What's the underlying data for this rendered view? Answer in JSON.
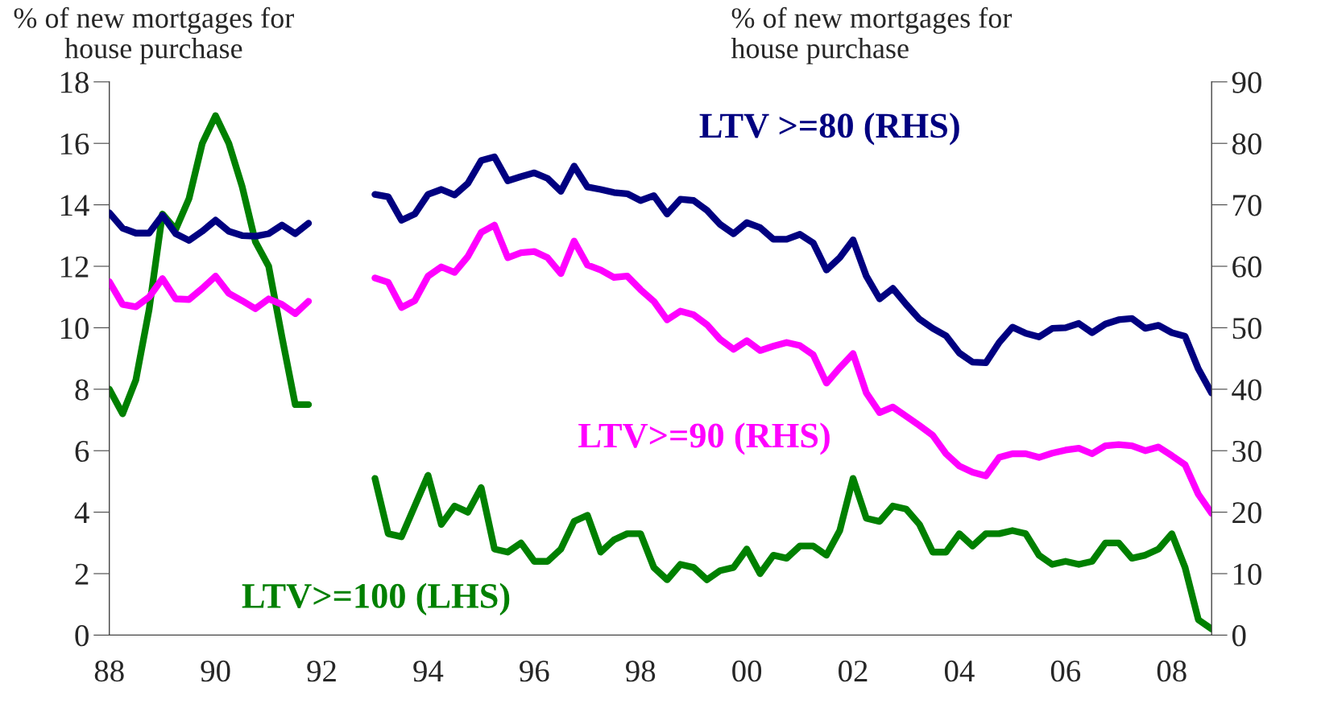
{
  "chart_data": {
    "type": "line",
    "ylabel": "% of new mortgages for house purchase",
    "y2label": "% of new mortgages for house purchase",
    "x": [
      1988.0,
      1988.25,
      1988.5,
      1988.75,
      1989.0,
      1989.25,
      1989.5,
      1989.75,
      1990.0,
      1990.25,
      1990.5,
      1990.75,
      1991.0,
      1991.25,
      1991.5,
      1991.75,
      1992.5,
      1993.0,
      1993.25,
      1993.5,
      1993.75,
      1994.0,
      1994.25,
      1994.5,
      1994.75,
      1995.0,
      1995.25,
      1995.5,
      1995.75,
      1996.0,
      1996.25,
      1996.5,
      1996.75,
      1997.0,
      1997.25,
      1997.5,
      1997.75,
      1998.0,
      1998.25,
      1998.5,
      1998.75,
      1999.0,
      1999.25,
      1999.5,
      1999.75,
      2000.0,
      2000.25,
      2000.5,
      2000.75,
      2001.0,
      2001.25,
      2001.5,
      2001.75,
      2002.0,
      2002.25,
      2002.5,
      2002.75,
      2003.0,
      2003.25,
      2003.5,
      2003.75,
      2004.0,
      2004.25,
      2004.5,
      2004.75,
      2005.0,
      2005.25,
      2005.5,
      2005.75,
      2006.0,
      2006.25,
      2006.5,
      2006.75,
      2007.0,
      2007.25,
      2007.5,
      2007.75,
      2008.0,
      2008.25,
      2008.5,
      2008.75
    ],
    "series": [
      {
        "name": "LTV >=80 (RHS)",
        "color": "#000080",
        "axis": "y2",
        "values": [
          68.7,
          66.2,
          65.4,
          65.4,
          68.3,
          65.3,
          64.2,
          65.7,
          67.5,
          65.7,
          65.0,
          64.9,
          65.3,
          66.7,
          65.3,
          67.0,
          null,
          71.7,
          71.3,
          67.5,
          68.5,
          71.7,
          72.5,
          71.6,
          73.5,
          77.2,
          77.8,
          73.9,
          74.6,
          75.2,
          74.3,
          72.2,
          76.3,
          72.9,
          72.5,
          72.0,
          71.8,
          70.7,
          71.5,
          68.5,
          70.9,
          70.7,
          69.1,
          66.8,
          65.3,
          67.1,
          66.3,
          64.4,
          64.4,
          65.2,
          63.8,
          59.4,
          61.4,
          64.3,
          58.4,
          54.7,
          56.4,
          53.8,
          51.4,
          49.9,
          48.7,
          45.9,
          44.4,
          44.3,
          47.6,
          50.1,
          49.1,
          48.5,
          49.9,
          50.0,
          50.7,
          49.2,
          50.6,
          51.3,
          51.5,
          49.9,
          50.4,
          49.2,
          48.6,
          43.3,
          39.4
        ]
      },
      {
        "name": "LTV>=90 (RHS)",
        "color": "#ff00ff",
        "axis": "y2",
        "values": [
          57.5,
          53.8,
          53.4,
          55.0,
          58.0,
          54.7,
          54.6,
          56.4,
          58.4,
          55.6,
          54.4,
          53.1,
          54.7,
          53.8,
          52.3,
          54.3,
          null,
          58.1,
          57.4,
          53.3,
          54.4,
          58.4,
          59.9,
          59.0,
          61.6,
          65.5,
          66.7,
          61.4,
          62.2,
          62.4,
          61.4,
          58.8,
          64.1,
          60.2,
          59.4,
          58.2,
          58.4,
          56.2,
          54.3,
          51.3,
          52.7,
          52.1,
          50.5,
          48.1,
          46.5,
          47.9,
          46.3,
          47.0,
          47.6,
          47.1,
          45.6,
          41.0,
          43.5,
          45.8,
          39.4,
          36.2,
          37.1,
          35.6,
          34.1,
          32.5,
          29.5,
          27.5,
          26.5,
          25.9,
          28.9,
          29.5,
          29.5,
          28.9,
          29.6,
          30.1,
          30.4,
          29.5,
          30.8,
          31.0,
          30.8,
          30.0,
          30.6,
          29.2,
          27.7,
          22.9,
          19.8
        ]
      },
      {
        "name": "LTV>=100 (LHS)",
        "color": "#008000",
        "axis": "y",
        "values": [
          8.0,
          7.2,
          8.3,
          10.6,
          13.7,
          13.2,
          14.2,
          16.0,
          16.9,
          16.0,
          14.6,
          12.8,
          12.0,
          9.7,
          7.5,
          7.5,
          null,
          5.1,
          3.3,
          3.2,
          4.2,
          5.2,
          3.6,
          4.2,
          4.0,
          4.8,
          2.8,
          2.7,
          3.0,
          2.4,
          2.4,
          2.8,
          3.7,
          3.9,
          2.7,
          3.1,
          3.3,
          3.3,
          2.2,
          1.8,
          2.3,
          2.2,
          1.8,
          2.1,
          2.2,
          2.8,
          2.0,
          2.6,
          2.5,
          2.9,
          2.9,
          2.6,
          3.4,
          5.1,
          3.8,
          3.7,
          4.2,
          4.1,
          3.6,
          2.7,
          2.7,
          3.3,
          2.9,
          3.3,
          3.3,
          3.4,
          3.3,
          2.6,
          2.3,
          2.4,
          2.3,
          2.4,
          3.0,
          3.0,
          2.5,
          2.6,
          2.8,
          3.3,
          2.2,
          0.5,
          0.2
        ]
      }
    ],
    "xlim": [
      1988,
      2008.75
    ],
    "xticks": [
      {
        "value": 1988,
        "label": "88"
      },
      {
        "value": 1990,
        "label": "90"
      },
      {
        "value": 1992,
        "label": "92"
      },
      {
        "value": 1994,
        "label": "94"
      },
      {
        "value": 1996,
        "label": "96"
      },
      {
        "value": 1998,
        "label": "98"
      },
      {
        "value": 2000,
        "label": "00"
      },
      {
        "value": 2002,
        "label": "02"
      },
      {
        "value": 2004,
        "label": "04"
      },
      {
        "value": 2006,
        "label": "06"
      },
      {
        "value": 2008,
        "label": "08"
      }
    ],
    "ylim": [
      0,
      18
    ],
    "yticks": [
      0,
      2,
      4,
      6,
      8,
      10,
      12,
      14,
      16,
      18
    ],
    "y2lim": [
      0,
      90
    ],
    "y2ticks": [
      0,
      10,
      20,
      30,
      40,
      50,
      60,
      70,
      80,
      90
    ],
    "grid": false,
    "line_style": "solid",
    "marker": "none"
  }
}
